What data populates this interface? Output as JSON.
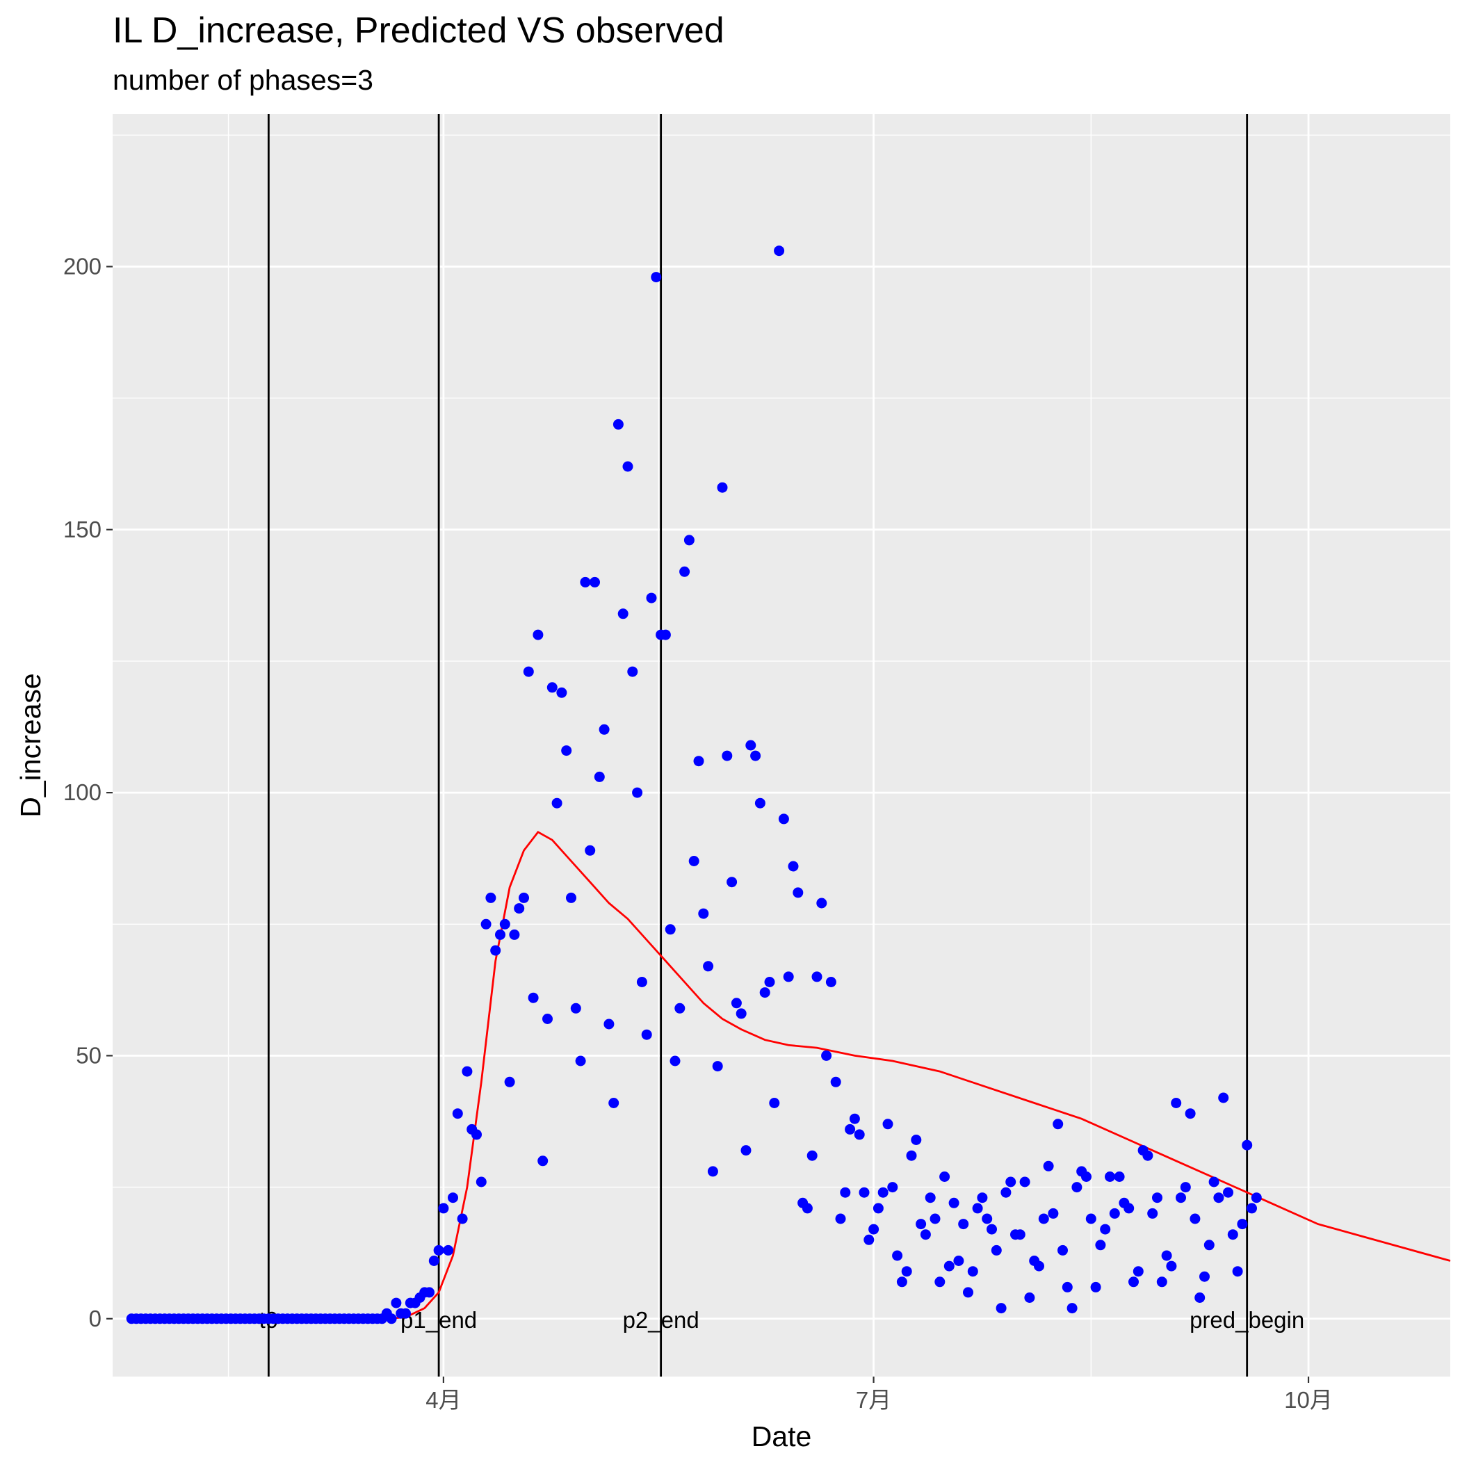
{
  "chart_data": {
    "type": "scatter",
    "title": "IL D_increase, Predicted VS observed",
    "subtitle": "number of phases=3",
    "xlabel": "Date",
    "ylabel": "D_increase",
    "xlim": [
      "2020-01-22",
      "2020-10-31"
    ],
    "ylim": [
      -11,
      229
    ],
    "x_ticks": [
      {
        "date": "2020-04-01",
        "label": "4月"
      },
      {
        "date": "2020-07-01",
        "label": "7月"
      },
      {
        "date": "2020-10-01",
        "label": "10月"
      }
    ],
    "y_ticks": [
      0,
      50,
      100,
      150,
      200
    ],
    "grid": true,
    "panel_background": "#EBEBEB",
    "grid_color": "#FFFFFF",
    "observed_color": "#0000FF",
    "predicted_color": "#FF0000",
    "vlines": [
      {
        "label": "t0",
        "date": "2020-02-24"
      },
      {
        "label": "p1_end",
        "date": "2020-03-31"
      },
      {
        "label": "p2_end",
        "date": "2020-05-17"
      },
      {
        "label": "pred_begin",
        "date": "2020-09-18"
      }
    ],
    "series": [
      {
        "kind": "points",
        "start_date": "2020-01-26",
        "values": [
          0,
          0,
          0,
          0,
          0,
          0,
          0,
          0,
          0,
          0,
          0,
          0,
          0,
          0,
          0,
          0,
          0,
          0,
          0,
          0,
          0,
          0,
          0,
          0,
          0,
          0,
          0,
          0,
          0,
          0,
          0,
          0,
          0,
          0,
          0,
          0,
          0,
          0,
          0,
          0,
          0,
          0,
          0,
          0,
          0,
          0,
          0,
          0,
          0,
          0,
          0,
          0,
          0,
          0,
          1,
          0,
          3,
          1,
          1,
          3,
          3,
          4,
          5,
          5,
          11,
          13,
          21,
          13,
          23,
          39,
          19,
          47,
          36,
          35,
          26,
          75,
          80,
          70,
          73,
          75,
          45,
          73,
          78,
          80,
          123,
          61,
          130,
          30,
          57,
          120,
          98,
          119,
          108,
          80,
          59,
          49,
          140,
          89,
          140,
          103,
          112,
          56,
          41,
          170,
          134,
          162,
          123,
          100,
          64,
          54,
          137,
          198,
          130,
          130,
          74,
          49,
          59,
          142,
          148,
          87,
          106,
          77,
          67,
          28,
          48,
          158,
          107,
          83,
          60,
          58,
          32,
          109,
          107,
          98,
          62,
          64,
          41,
          203,
          95,
          65,
          86,
          81,
          22,
          21,
          31,
          65,
          79,
          50,
          64,
          45,
          19,
          24,
          36,
          38,
          35,
          24,
          15,
          17,
          21,
          24,
          37,
          25,
          12,
          7,
          9,
          31,
          34,
          18,
          16,
          23,
          19,
          7,
          27,
          10,
          22,
          11,
          18,
          5,
          9,
          21,
          23,
          19,
          17,
          13,
          2,
          24,
          26,
          16,
          16,
          26,
          4,
          11,
          10,
          19,
          29,
          20,
          37,
          13,
          6,
          2,
          25,
          28,
          27,
          19,
          6,
          14,
          17,
          27,
          20,
          27,
          22,
          21,
          7,
          9,
          32,
          31,
          20,
          23,
          7,
          12,
          10,
          41,
          23,
          25,
          39,
          19,
          4,
          8,
          14,
          26,
          23,
          42,
          24,
          16,
          9,
          18,
          33,
          21,
          23
        ]
      },
      {
        "kind": "line",
        "points": [
          [
            "2020-01-26",
            0
          ],
          [
            "2020-03-20",
            0
          ],
          [
            "2020-03-24",
            0.3
          ],
          [
            "2020-03-28",
            2
          ],
          [
            "2020-03-31",
            5
          ],
          [
            "2020-04-03",
            12
          ],
          [
            "2020-04-06",
            25
          ],
          [
            "2020-04-09",
            45
          ],
          [
            "2020-04-12",
            68
          ],
          [
            "2020-04-15",
            82
          ],
          [
            "2020-04-18",
            89
          ],
          [
            "2020-04-21",
            92.5
          ],
          [
            "2020-04-24",
            91
          ],
          [
            "2020-04-28",
            87
          ],
          [
            "2020-05-02",
            83
          ],
          [
            "2020-05-06",
            79
          ],
          [
            "2020-05-10",
            76
          ],
          [
            "2020-05-14",
            72
          ],
          [
            "2020-05-18",
            68
          ],
          [
            "2020-05-22",
            64
          ],
          [
            "2020-05-26",
            60
          ],
          [
            "2020-05-30",
            57
          ],
          [
            "2020-06-03",
            55
          ],
          [
            "2020-06-08",
            53
          ],
          [
            "2020-06-13",
            52
          ],
          [
            "2020-06-19",
            51.5
          ],
          [
            "2020-06-27",
            50
          ],
          [
            "2020-07-05",
            49
          ],
          [
            "2020-07-15",
            47
          ],
          [
            "2020-07-25",
            44
          ],
          [
            "2020-08-04",
            41
          ],
          [
            "2020-08-14",
            38
          ],
          [
            "2020-08-24",
            34
          ],
          [
            "2020-09-03",
            30
          ],
          [
            "2020-09-13",
            26
          ],
          [
            "2020-09-23",
            22
          ],
          [
            "2020-10-03",
            18
          ],
          [
            "2020-10-13",
            15.5
          ],
          [
            "2020-10-23",
            13
          ],
          [
            "2020-10-31",
            11
          ]
        ]
      }
    ]
  }
}
